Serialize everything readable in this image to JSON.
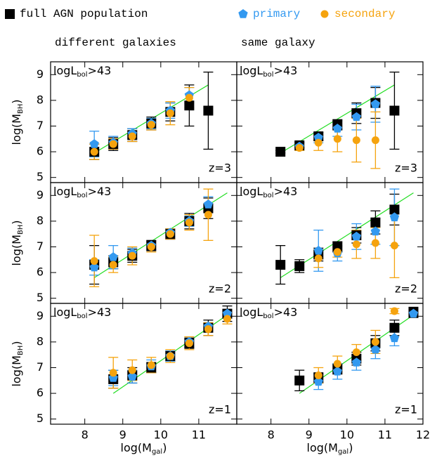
{
  "chart_data": {
    "type": "scatter",
    "column_titles": [
      "different galaxies",
      "same galaxy"
    ],
    "xlabel": {
      "text": "log(M",
      "sub": "gal",
      "tail": ")"
    },
    "ylabel": {
      "text": "log(M",
      "sub": "BH",
      "tail": ")"
    },
    "annotation": {
      "text": "logL",
      "sub": "bol",
      "tail": ">43"
    },
    "x": [
      8.25,
      8.75,
      9.25,
      9.75,
      10.25,
      10.75,
      11.25,
      11.75
    ],
    "xlim": [
      7.1,
      12
    ],
    "xticks": [
      8,
      9,
      10,
      11,
      12
    ],
    "ylim": [
      4.8,
      9.5
    ],
    "yticks": [
      5,
      6,
      7,
      8,
      9
    ],
    "panels": [
      {
        "z": "z=3",
        "fit": {
          "x": [
            8.25,
            11.25
          ],
          "y": [
            5.95,
            8.6
          ]
        }
      },
      {
        "z": "z=3",
        "fit": {
          "x": [
            8.25,
            11.25
          ],
          "y": [
            5.95,
            8.6
          ]
        }
      },
      {
        "z": "z=2",
        "fit": {
          "x": [
            8.25,
            11.75
          ],
          "y": [
            5.8,
            9.1
          ]
        }
      },
      {
        "z": "z=2",
        "fit": {
          "x": [
            8.25,
            11.75
          ],
          "y": [
            5.8,
            9.1
          ]
        }
      },
      {
        "z": "z=1",
        "fit": {
          "x": [
            8.75,
            11.75
          ],
          "y": [
            6.0,
            9.05
          ]
        }
      },
      {
        "z": "z=1",
        "fit": {
          "x": [
            8.75,
            11.75
          ],
          "y": [
            6.0,
            9.05
          ]
        }
      }
    ],
    "series": [
      {
        "name": "full AGN population",
        "color": "#000000",
        "marker": "square",
        "values": [
          [
            6.0,
            6.3,
            6.65,
            7.1,
            7.55,
            7.8,
            7.6,
            null
          ],
          [
            6.0,
            6.25,
            6.6,
            7.05,
            7.5,
            7.9,
            7.6,
            null
          ],
          [
            6.3,
            6.4,
            6.65,
            7.05,
            7.5,
            8.0,
            8.5,
            null
          ],
          [
            6.3,
            6.25,
            6.7,
            7.0,
            7.45,
            7.95,
            8.45,
            null
          ],
          [
            null,
            6.55,
            6.7,
            7.0,
            7.45,
            7.95,
            8.55,
            9.1
          ],
          [
            null,
            6.5,
            6.6,
            6.95,
            7.35,
            7.95,
            8.55,
            9.15
          ]
        ],
        "errors": [
          [
            0.3,
            0.25,
            0.25,
            0.25,
            0.35,
            0.8,
            1.5,
            null
          ],
          [
            0.05,
            0.1,
            0.15,
            0.2,
            0.4,
            0.6,
            1.5,
            null
          ],
          [
            0.75,
            0.25,
            0.25,
            0.2,
            0.2,
            0.3,
            0.4,
            null
          ],
          [
            0.75,
            0.25,
            0.25,
            0.2,
            0.3,
            0.45,
            0.6,
            null
          ],
          [
            null,
            0.35,
            0.3,
            0.2,
            0.2,
            0.2,
            0.3,
            0.3
          ],
          [
            null,
            0.4,
            0.2,
            0.2,
            0.25,
            0.3,
            0.3,
            0.2
          ]
        ]
      },
      {
        "name": "primary",
        "color": "#3399f0",
        "marker": "pentagon",
        "values": [
          [
            6.3,
            6.35,
            6.7,
            7.1,
            7.6,
            8.2,
            null,
            null
          ],
          [
            null,
            6.2,
            6.55,
            6.9,
            7.35,
            7.85,
            null,
            null
          ],
          [
            6.2,
            6.6,
            6.75,
            7.05,
            7.55,
            8.0,
            8.65,
            null
          ],
          [
            null,
            null,
            6.85,
            6.75,
            7.4,
            7.6,
            8.15,
            null
          ],
          [
            null,
            6.6,
            6.65,
            7.05,
            7.45,
            8.0,
            8.6,
            9.1
          ],
          [
            null,
            null,
            6.45,
            6.85,
            7.2,
            7.7,
            8.15,
            9.1
          ]
        ],
        "errors": [
          [
            0.5,
            0.25,
            0.2,
            0.2,
            0.3,
            0.3,
            null,
            null
          ],
          [
            null,
            0.15,
            0.2,
            0.3,
            0.5,
            0.7,
            null,
            null
          ],
          [
            0.3,
            0.45,
            0.2,
            0.15,
            0.15,
            0.2,
            0.3,
            null
          ],
          [
            null,
            null,
            0.8,
            0.3,
            0.5,
            0.5,
            1.1,
            null
          ],
          [
            null,
            0.3,
            0.25,
            0.25,
            0.2,
            0.2,
            0.15,
            0.15
          ],
          [
            null,
            null,
            0.3,
            0.3,
            0.3,
            0.35,
            0.3,
            0.1
          ]
        ]
      },
      {
        "name": "secondary",
        "color": "#f5a30e",
        "marker": "circle",
        "values": [
          [
            6.0,
            6.3,
            6.6,
            7.05,
            7.5,
            8.1,
            null,
            null
          ],
          [
            null,
            6.15,
            6.35,
            6.5,
            6.45,
            6.45,
            null,
            null
          ],
          [
            6.45,
            6.3,
            6.65,
            7.0,
            7.5,
            7.95,
            8.25,
            null
          ],
          [
            null,
            null,
            6.55,
            6.8,
            7.1,
            7.15,
            7.05,
            null
          ],
          [
            null,
            6.8,
            6.9,
            7.1,
            7.45,
            7.95,
            8.5,
            8.9
          ],
          [
            null,
            null,
            6.7,
            7.15,
            7.6,
            8.0,
            9.2,
            null
          ]
        ],
        "errors": [
          [
            0.3,
            0.2,
            0.2,
            0.2,
            0.45,
            0.4,
            null,
            null
          ],
          [
            null,
            0.1,
            0.3,
            0.5,
            0.85,
            1.1,
            null,
            null
          ],
          [
            1.0,
            0.3,
            0.35,
            0.2,
            0.2,
            0.3,
            1.0,
            null
          ],
          [
            null,
            null,
            0.35,
            0.2,
            0.55,
            0.6,
            1.25,
            null
          ],
          [
            null,
            0.6,
            0.4,
            0.3,
            0.25,
            0.25,
            0.25,
            0.2
          ],
          [
            null,
            null,
            0.3,
            0.3,
            0.3,
            0.45,
            0.1,
            null
          ]
        ]
      }
    ]
  }
}
